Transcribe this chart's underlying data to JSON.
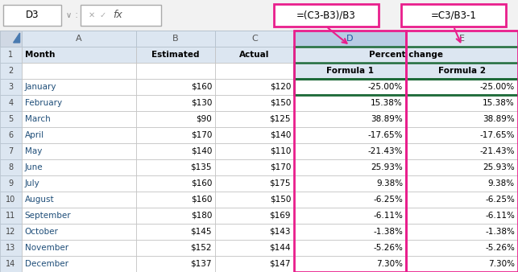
{
  "formula_bar_cell": "D3",
  "formula1_text": "=(C3-B3)/B3",
  "formula2_text": "=C3/B3-1",
  "col_headers": [
    "A",
    "B",
    "C",
    "D",
    "E"
  ],
  "months": [
    "January",
    "February",
    "March",
    "April",
    "May",
    "June",
    "July",
    "August",
    "September",
    "October",
    "November",
    "December"
  ],
  "estimated": [
    "$160",
    "$130",
    "$90",
    "$170",
    "$140",
    "$135",
    "$160",
    "$160",
    "$180",
    "$145",
    "$152",
    "$137"
  ],
  "actual": [
    "$120",
    "$150",
    "$125",
    "$140",
    "$110",
    "$170",
    "$175",
    "$150",
    "$169",
    "$143",
    "$144",
    "$147"
  ],
  "formula1": [
    "-25.00%",
    "15.38%",
    "38.89%",
    "-17.65%",
    "-21.43%",
    "25.93%",
    "9.38%",
    "-6.25%",
    "-6.11%",
    "-1.38%",
    "-5.26%",
    "7.30%"
  ],
  "formula2": [
    "-25.00%",
    "15.38%",
    "38.89%",
    "-17.65%",
    "-21.43%",
    "25.93%",
    "9.38%",
    "-6.25%",
    "-6.11%",
    "-1.38%",
    "-5.26%",
    "7.30%"
  ],
  "col_bg_normal": "#dce6f1",
  "col_bg_selected": "#b8cce4",
  "row_header_bg": "#dce6f1",
  "cell_bg_white": "#ffffff",
  "cell_bg_header1": "#dce6f1",
  "green_border": "#1f6b3a",
  "pink_color": "#e91e8c",
  "month_color": "#1f4e79",
  "grid_color": "#bfbfbf",
  "formula_bar_bg": "#f2f2f2",
  "nb_border": "#aaaaaa"
}
